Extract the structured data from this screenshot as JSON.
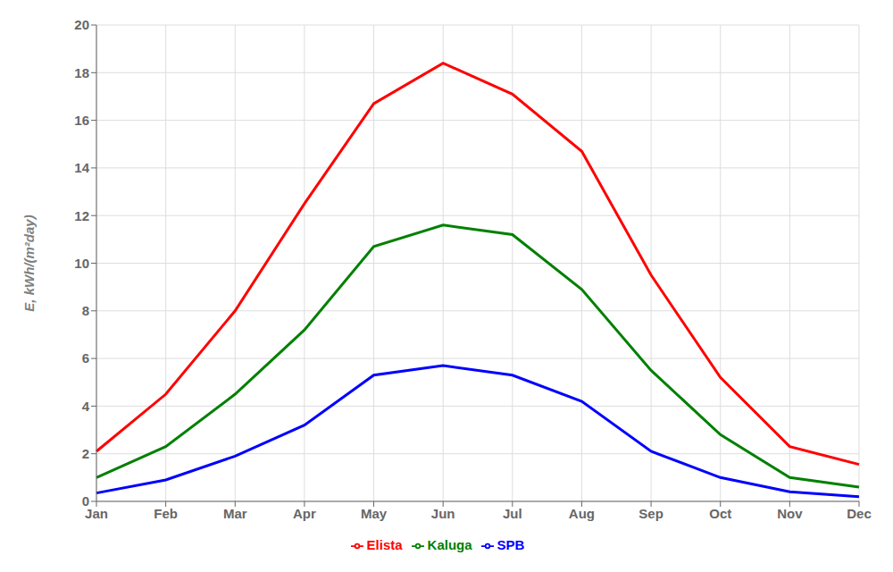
{
  "chart_data": {
    "type": "line",
    "categories": [
      "Jan",
      "Feb",
      "Mar",
      "Apr",
      "May",
      "Jun",
      "Jul",
      "Aug",
      "Sep",
      "Oct",
      "Nov",
      "Dec"
    ],
    "series": [
      {
        "name": "SPB",
        "color": "#0000FF",
        "values": [
          0.35,
          0.9,
          1.9,
          3.2,
          5.3,
          5.7,
          5.3,
          4.2,
          2.1,
          1.0,
          0.4,
          0.2
        ]
      },
      {
        "name": "Kaluga",
        "color": "#008000",
        "values": [
          1.0,
          2.3,
          4.5,
          7.2,
          10.7,
          11.6,
          11.2,
          8.9,
          5.5,
          2.8,
          1.0,
          0.6
        ]
      },
      {
        "name": "Elista",
        "color": "#FF0000",
        "values": [
          2.1,
          4.5,
          8.0,
          12.5,
          16.7,
          18.4,
          17.1,
          14.7,
          9.5,
          5.2,
          2.3,
          1.55
        ]
      }
    ],
    "ylabel": "E,  kWh/(m²day)",
    "ylim": [
      0,
      20
    ],
    "yticks": [
      0,
      2,
      4,
      6,
      8,
      10,
      12,
      14,
      16,
      18,
      20
    ],
    "grid": true,
    "legend": "bottom"
  }
}
